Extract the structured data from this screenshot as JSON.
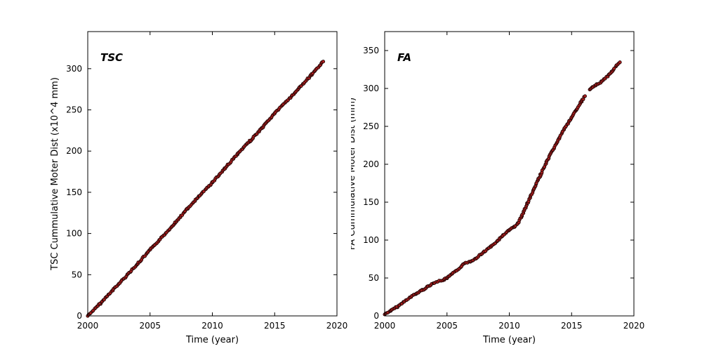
{
  "figure": {
    "background": "#ffffff",
    "frame_color": "#000000",
    "text_color": "#000000"
  },
  "chart_data": [
    {
      "id": "tsc",
      "type": "scatter",
      "corner_label": "TSC",
      "xlabel": "Time (year)",
      "ylabel": "TSC Cummulative Moter Dist (x10^4 mm)",
      "xlim": [
        2000,
        2020
      ],
      "ylim": [
        0,
        345
      ],
      "xticks": [
        2000,
        2005,
        2010,
        2015,
        2020
      ],
      "yticks": [
        0,
        50,
        100,
        150,
        200,
        250,
        300
      ],
      "grid": false,
      "legend": "none",
      "marker": {
        "fill": "#b41f1f",
        "edge": "#1e0505"
      },
      "segments": [
        [
          [
            2000.0,
            0
          ],
          [
            2001.0,
            15
          ],
          [
            2002.0,
            31
          ],
          [
            2003.0,
            47
          ],
          [
            2004.0,
            63
          ],
          [
            2005.0,
            80
          ],
          [
            2006.0,
            96
          ],
          [
            2007.0,
            113
          ],
          [
            2008.0,
            130
          ],
          [
            2009.0,
            146
          ],
          [
            2010.0,
            162
          ],
          [
            2011.0,
            179
          ],
          [
            2012.0,
            196
          ],
          [
            2013.0,
            212
          ],
          [
            2014.0,
            228
          ],
          [
            2015.0,
            246
          ],
          [
            2016.0,
            261
          ],
          [
            2017.0,
            277
          ],
          [
            2018.0,
            293
          ],
          [
            2018.9,
            309
          ]
        ]
      ]
    },
    {
      "id": "fa",
      "type": "scatter",
      "corner_label": "FA",
      "xlabel": "Time (year)",
      "ylabel": "FA Cummulative Moter Dist (mm)",
      "xlim": [
        2000,
        2020
      ],
      "ylim": [
        0,
        375
      ],
      "xticks": [
        2000,
        2005,
        2010,
        2015,
        2020
      ],
      "yticks": [
        0,
        50,
        100,
        150,
        200,
        250,
        300,
        350
      ],
      "grid": false,
      "legend": "none",
      "marker": {
        "fill": "#b41f1f",
        "edge": "#1e0505"
      },
      "segments": [
        [
          [
            2000.0,
            2
          ],
          [
            2000.5,
            7
          ],
          [
            2001.0,
            12
          ],
          [
            2001.5,
            18
          ],
          [
            2002.0,
            24
          ],
          [
            2002.5,
            29
          ],
          [
            2003.0,
            34
          ],
          [
            2003.5,
            39
          ],
          [
            2004.0,
            44
          ],
          [
            2004.4,
            46
          ],
          [
            2004.8,
            48
          ],
          [
            2005.0,
            50
          ],
          [
            2005.4,
            55
          ],
          [
            2005.8,
            60
          ],
          [
            2006.2,
            66
          ],
          [
            2006.5,
            70
          ],
          [
            2006.9,
            72
          ],
          [
            2007.3,
            76
          ],
          [
            2007.7,
            81
          ],
          [
            2008.0,
            85
          ],
          [
            2008.5,
            91
          ],
          [
            2009.0,
            98
          ],
          [
            2009.5,
            106
          ],
          [
            2010.0,
            113
          ],
          [
            2010.4,
            118
          ],
          [
            2010.7,
            122
          ],
          [
            2011.0,
            132
          ],
          [
            2011.5,
            150
          ],
          [
            2012.0,
            168
          ],
          [
            2012.5,
            186
          ],
          [
            2013.0,
            203
          ],
          [
            2013.5,
            219
          ],
          [
            2014.0,
            234
          ],
          [
            2014.5,
            249
          ],
          [
            2015.0,
            262
          ],
          [
            2015.4,
            272
          ],
          [
            2015.8,
            283
          ],
          [
            2016.1,
            290
          ]
        ],
        [
          [
            2016.45,
            298
          ],
          [
            2016.7,
            302
          ],
          [
            2017.0,
            305
          ],
          [
            2017.4,
            309
          ],
          [
            2017.8,
            315
          ],
          [
            2018.2,
            322
          ],
          [
            2018.6,
            330
          ],
          [
            2018.9,
            334
          ]
        ]
      ]
    }
  ]
}
